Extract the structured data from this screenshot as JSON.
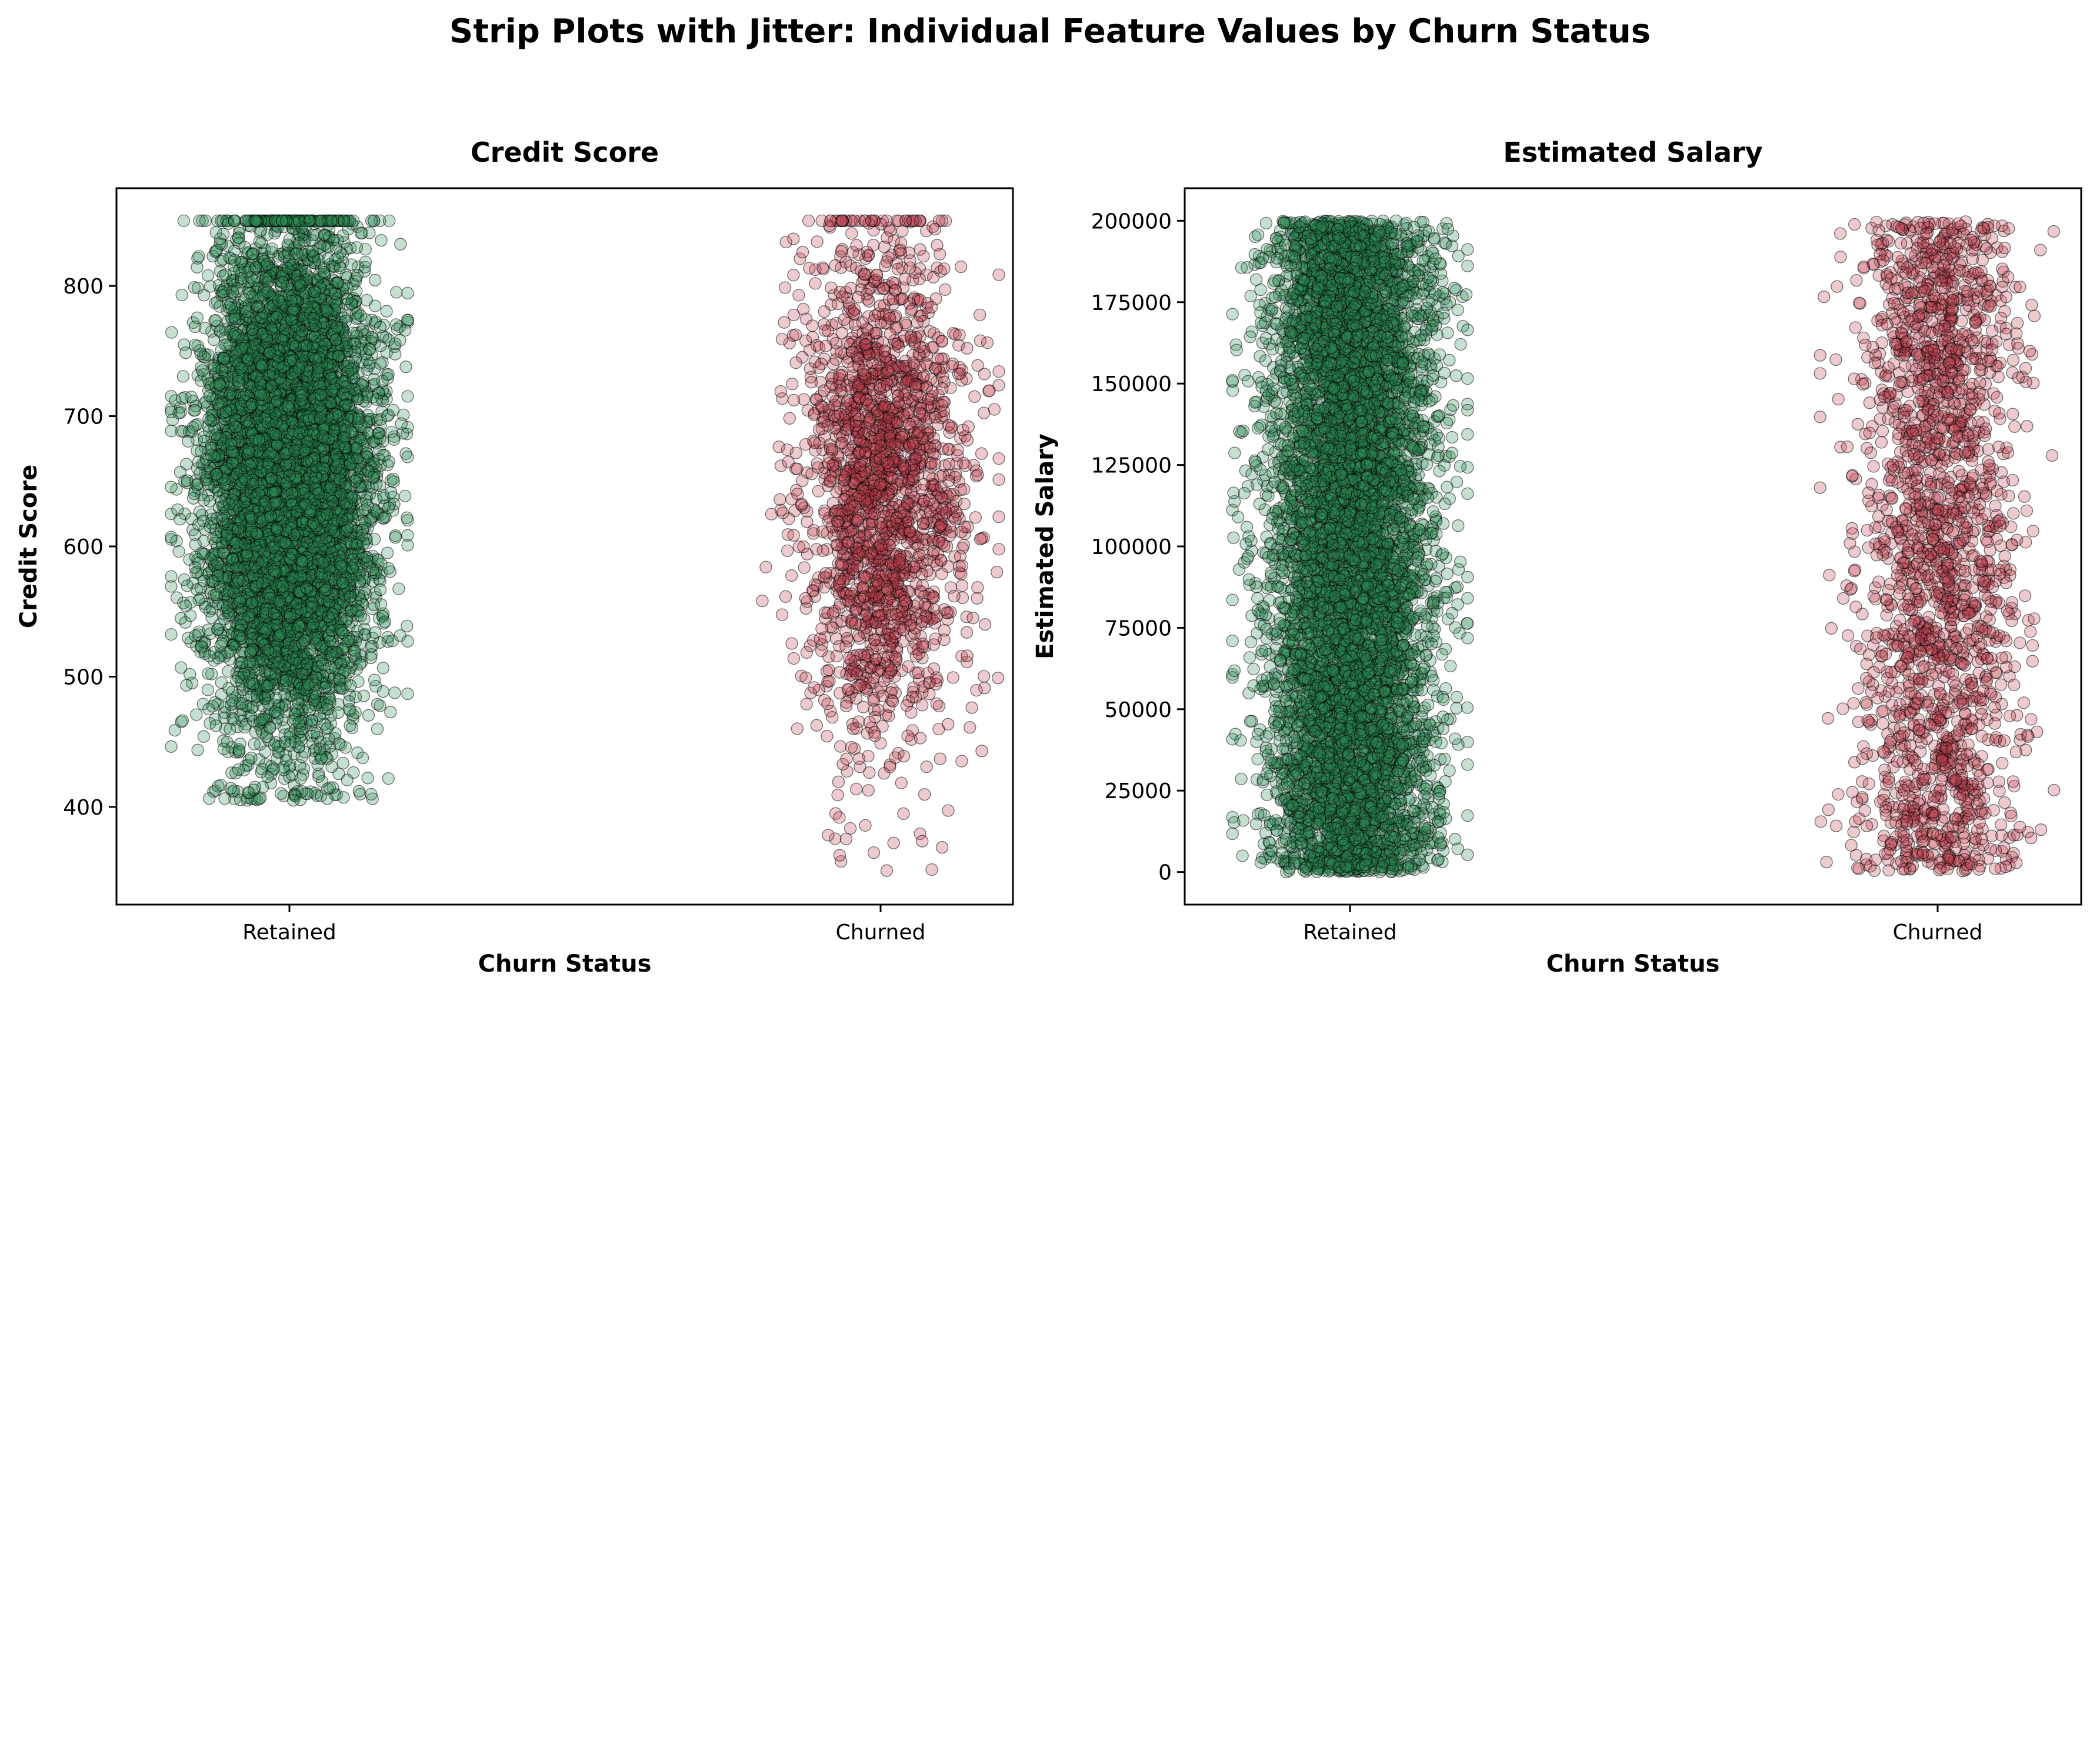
{
  "figure": {
    "title": "Strip Plots with Jitter: Individual Feature Values by Churn Status"
  },
  "colors": {
    "retained": "#2e8b57",
    "churned": "#c0404f",
    "edge": "#000000",
    "axis": "#000000"
  },
  "chart_data": [
    {
      "type": "scatter",
      "subtype": "strip-jitter",
      "title": "Credit Score",
      "xlabel": "Churn Status",
      "ylabel": "Credit Score",
      "categories": [
        "Retained",
        "Churned"
      ],
      "ylim": [
        325,
        875
      ],
      "yticks": [
        400,
        500,
        600,
        700,
        800
      ],
      "grid": false,
      "jitter": 0.2,
      "value_clip": [
        350,
        850
      ],
      "series": [
        {
          "category": "Retained",
          "approx_count": 7963,
          "distribution": {
            "kind": "normal",
            "mean": 652,
            "sd": 95,
            "min": 405,
            "max": 850,
            "pile_at_max": 180
          }
        },
        {
          "category": "Churned",
          "approx_count": 2037,
          "distribution": {
            "kind": "normal",
            "mean": 645,
            "sd": 100,
            "min": 350,
            "max": 850,
            "pile_at_max": 50
          }
        }
      ]
    },
    {
      "type": "scatter",
      "subtype": "strip-jitter",
      "title": "Estimated Salary",
      "xlabel": "Churn Status",
      "ylabel": "Estimated Salary",
      "categories": [
        "Retained",
        "Churned"
      ],
      "ylim": [
        -10000,
        210000
      ],
      "yticks": [
        0,
        25000,
        50000,
        75000,
        100000,
        125000,
        150000,
        175000,
        200000
      ],
      "grid": false,
      "jitter": 0.2,
      "series": [
        {
          "category": "Retained",
          "approx_count": 7963,
          "distribution": {
            "kind": "uniform",
            "min": 0,
            "max": 200000
          }
        },
        {
          "category": "Churned",
          "approx_count": 2037,
          "distribution": {
            "kind": "uniform",
            "min": 0,
            "max": 200000
          }
        }
      ]
    }
  ]
}
